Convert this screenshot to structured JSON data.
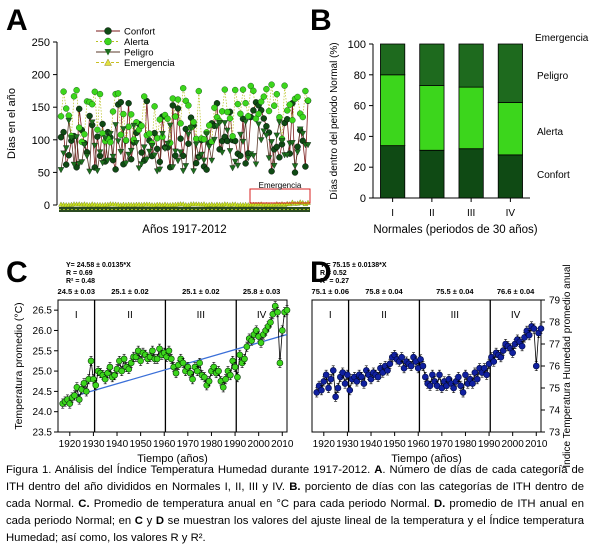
{
  "colors": {
    "confort": "#0f4a14",
    "alerta": "#3cd61c",
    "peligro": "#1d6e1e",
    "emergencia": "#2f8a2e",
    "blue_line": "#3a6fd8",
    "navy_points": "#1020a0",
    "red_box": "#d82020"
  },
  "chart_data": [
    {
      "panel_letter": "A",
      "type": "line",
      "xlabel": "Años 1917-2012",
      "ylabel": "Días en el año",
      "ylim": [
        0,
        250
      ],
      "yticks": [
        "0",
        "50",
        "100",
        "150",
        "200",
        "250"
      ],
      "series": [
        {
          "name": "Confort",
          "marker": "circle-dark",
          "mean_level": 105,
          "range": [
            40,
            200
          ]
        },
        {
          "name": "Alerta",
          "marker": "circle-light",
          "mean_level": 140,
          "range": [
            70,
            200
          ]
        },
        {
          "name": "Peligro",
          "marker": "triangle-down-dark",
          "mean_level": 90,
          "range": [
            45,
            160
          ]
        },
        {
          "name": "Emergencia",
          "marker": "triangle-up-light",
          "mean_level": 1,
          "range": [
            0,
            6
          ]
        }
      ],
      "annotation": "Emergencia"
    },
    {
      "panel_letter": "B",
      "type": "bar",
      "stacked": true,
      "xlabel": "Normales (periodos de 30 años)",
      "ylabel": "Días dentro del periodo Normal (%)",
      "categories": [
        "I",
        "II",
        "III",
        "IV"
      ],
      "ylim": [
        0,
        100
      ],
      "yticks": [
        "0",
        "20",
        "40",
        "60",
        "80",
        "100"
      ],
      "series": [
        {
          "name": "Confort",
          "values": [
            34,
            31,
            32,
            28
          ]
        },
        {
          "name": "Alerta",
          "values": [
            46,
            42,
            40,
            34
          ]
        },
        {
          "name": "Peligro",
          "values": [
            20,
            27,
            28,
            38
          ]
        },
        {
          "name": "Emergencia",
          "values": [
            0,
            0,
            0,
            0
          ]
        }
      ]
    },
    {
      "panel_letter": "C",
      "type": "line",
      "xlabel": "Tiempo (años)",
      "ylabel": "Temperatura promedio (°C)",
      "xlim": [
        1915,
        2012
      ],
      "ylim": [
        23.5,
        26.75
      ],
      "xticks": [
        "1920",
        "1930",
        "1940",
        "1950",
        "1960",
        "1970",
        "1980",
        "1990",
        "2000",
        "2010"
      ],
      "yticks": [
        "23.5",
        "24.0",
        "24.5",
        "25.0",
        "25.5",
        "26.0",
        "26.5"
      ],
      "fit": {
        "intercept_label": "Y= 24.58 ± 0.0135*X",
        "r": "R = 0.69",
        "r2": "R² = 0.48",
        "x0": 1917,
        "y0": 24.3,
        "x1": 2012,
        "y1": 25.9
      },
      "period_boundaries": [
        1930.5,
        1960.5,
        1990.5
      ],
      "period_labels": [
        "I",
        "II",
        "III",
        "IV"
      ],
      "period_means": [
        "24.5 ± 0.03",
        "25.1 ± 0.02",
        "25.1 ± 0.02",
        "25.8 ± 0.03"
      ],
      "x": [
        1917,
        1918,
        1919,
        1920,
        1921,
        1922,
        1923,
        1924,
        1925,
        1926,
        1927,
        1928,
        1929,
        1930,
        1931,
        1932,
        1933,
        1934,
        1935,
        1936,
        1937,
        1938,
        1939,
        1940,
        1941,
        1942,
        1943,
        1944,
        1945,
        1946,
        1947,
        1948,
        1949,
        1950,
        1951,
        1952,
        1953,
        1954,
        1955,
        1956,
        1957,
        1958,
        1959,
        1960,
        1961,
        1962,
        1963,
        1964,
        1965,
        1966,
        1967,
        1968,
        1969,
        1970,
        1971,
        1972,
        1973,
        1974,
        1975,
        1976,
        1977,
        1978,
        1979,
        1980,
        1981,
        1982,
        1983,
        1984,
        1985,
        1986,
        1987,
        1988,
        1989,
        1990,
        1991,
        1992,
        1993,
        1994,
        1995,
        1996,
        1997,
        1998,
        1999,
        2000,
        2001,
        2002,
        2003,
        2004,
        2005,
        2006,
        2007,
        2008,
        2009,
        2010,
        2011,
        2012
      ],
      "y": [
        24.2,
        24.25,
        24.3,
        24.2,
        24.35,
        24.4,
        24.6,
        24.3,
        24.55,
        24.7,
        24.5,
        24.8,
        25.25,
        24.8,
        24.65,
        25.0,
        24.95,
        24.9,
        24.8,
        24.95,
        25.1,
        24.85,
        24.9,
        25.05,
        25.25,
        25.0,
        25.3,
        25.1,
        25.05,
        25.2,
        25.35,
        25.35,
        25.5,
        25.25,
        25.45,
        25.4,
        25.3,
        25.35,
        25.5,
        25.3,
        25.3,
        25.55,
        25.4,
        25.45,
        25.35,
        25.5,
        25.3,
        25.1,
        24.95,
        25.15,
        25.3,
        25.2,
        25.0,
        25.1,
        24.95,
        24.8,
        25.1,
        25.0,
        25.2,
        24.9,
        24.85,
        24.65,
        24.75,
        25.0,
        25.1,
        24.95,
        25.0,
        24.75,
        24.6,
        24.8,
        25.0,
        24.9,
        25.25,
        25.1,
        24.85,
        25.4,
        25.2,
        25.3,
        25.6,
        25.8,
        25.75,
        25.9,
        26.0,
        25.85,
        25.7,
        25.9,
        26.0,
        26.1,
        26.2,
        26.4,
        26.6,
        26.45,
        25.2,
        26.0,
        26.45,
        26.5
      ]
    },
    {
      "panel_letter": "D",
      "type": "line",
      "xlabel": "Tiempo (años)",
      "ylabel": "Índice Temperatura Humedad promedio anual",
      "xlim": [
        1915,
        2012
      ],
      "ylim": [
        73,
        79
      ],
      "xticks": [
        "1920",
        "1930",
        "1940",
        "1950",
        "1960",
        "1970",
        "1980",
        "1990",
        "2000",
        "2010"
      ],
      "yticks": [
        "73",
        "74",
        "75",
        "76",
        "77",
        "78",
        "79"
      ],
      "fit": {
        "intercept_label": "Y = 75.15 ± 0.0138*X",
        "r": "R = 0.52",
        "r2": "R² = 0.27"
      },
      "period_boundaries": [
        1930.5,
        1960.5,
        1990.5
      ],
      "period_labels": [
        "I",
        "II",
        "III",
        "IV"
      ],
      "period_means": [
        "75.1 ± 0.06",
        "75.8 ± 0.04",
        "75.5 ± 0.04",
        "76.6 ± 0.04"
      ],
      "x": [
        1917,
        1918,
        1919,
        1920,
        1921,
        1922,
        1923,
        1924,
        1925,
        1926,
        1927,
        1928,
        1929,
        1930,
        1931,
        1932,
        1933,
        1934,
        1935,
        1936,
        1937,
        1938,
        1939,
        1940,
        1941,
        1942,
        1943,
        1944,
        1945,
        1946,
        1947,
        1948,
        1949,
        1950,
        1951,
        1952,
        1953,
        1954,
        1955,
        1956,
        1957,
        1958,
        1959,
        1960,
        1961,
        1962,
        1963,
        1964,
        1965,
        1966,
        1967,
        1968,
        1969,
        1970,
        1971,
        1972,
        1973,
        1974,
        1975,
        1976,
        1977,
        1978,
        1979,
        1980,
        1981,
        1982,
        1983,
        1984,
        1985,
        1986,
        1987,
        1988,
        1989,
        1990,
        1991,
        1992,
        1993,
        1994,
        1995,
        1996,
        1997,
        1998,
        1999,
        2000,
        2001,
        2002,
        2003,
        2004,
        2005,
        2006,
        2007,
        2008,
        2009,
        2010,
        2011,
        2012
      ],
      "y": [
        74.8,
        75.1,
        74.9,
        75.3,
        75.6,
        75.0,
        75.4,
        75.8,
        74.6,
        75.0,
        75.5,
        75.7,
        75.2,
        75.6,
        74.9,
        75.4,
        75.5,
        75.3,
        75.6,
        75.5,
        75.2,
        75.8,
        75.6,
        75.4,
        75.7,
        75.6,
        75.5,
        75.9,
        75.7,
        76.0,
        75.8,
        76.1,
        76.4,
        76.5,
        76.3,
        76.2,
        76.4,
        75.9,
        76.2,
        76.1,
        76.0,
        76.4,
        76.2,
        75.9,
        76.3,
        76.0,
        75.5,
        75.2,
        75.1,
        75.6,
        75.3,
        75.1,
        75.6,
        75.0,
        75.3,
        75.1,
        75.4,
        75.2,
        75.0,
        75.3,
        75.5,
        75.1,
        74.8,
        75.6,
        75.2,
        75.4,
        75.2,
        75.7,
        75.4,
        75.9,
        75.7,
        75.9,
        75.6,
        76.1,
        76.4,
        76.2,
        76.6,
        76.5,
        76.4,
        76.7,
        77.0,
        76.9,
        76.8,
        76.6,
        77.0,
        77.2,
        77.1,
        76.9,
        77.3,
        77.6,
        77.4,
        77.8,
        77.7,
        76.0,
        77.5,
        77.7
      ]
    }
  ],
  "caption": {
    "figure_label": "Figura 1.",
    "intro": " Análisis del Índice Temperatura Humedad durante 1917-2012. ",
    "a_letter": "A",
    "a_text": ". Número de días de cada categoría de ITH dentro del año divididos en Normales I, II, III y IV. ",
    "b_letter": "B.",
    "b_text": " porciento de días con las categorías de ITH dentro de cada Normal. ",
    "c_letter": "C.",
    "c_text": " Promedio de temperatura anual en °C para cada periodo Normal. ",
    "d_letter": "D.",
    "d_text": " promedio de ITH anual en cada periodo Normal; en ",
    "cd_c": "C",
    "cd_y": " y ",
    "cd_d": "D",
    "cd_text": " se muestran los valores del ajuste lineal de la temperatura y el Índice temperatura Humedad; así como, los valores R y R²."
  }
}
